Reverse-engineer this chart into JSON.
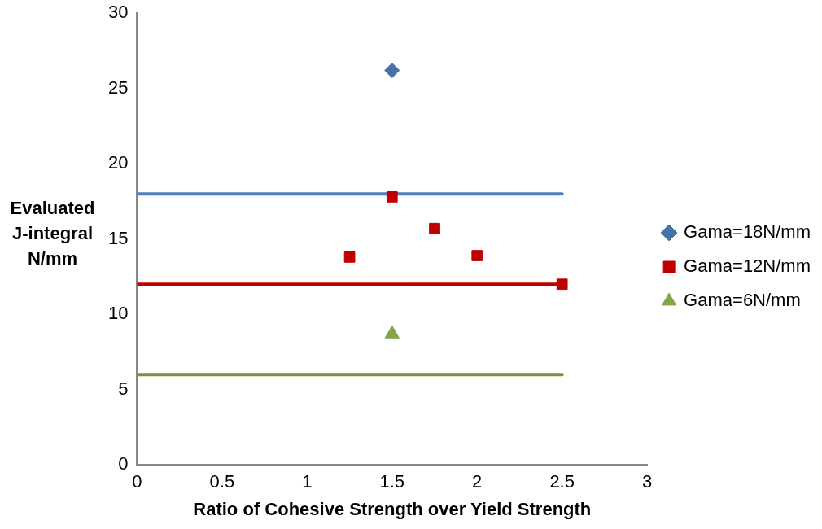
{
  "chart_data": {
    "type": "scatter",
    "xlabel": "Ratio of Cohesive Strength over Yield Strength",
    "ylabel": "Evaluated J-integral N/mm",
    "xlim": [
      0,
      3
    ],
    "xticks": [
      0,
      0.5,
      1,
      1.5,
      2,
      2.5,
      3
    ],
    "ylim": [
      0,
      30
    ],
    "yticks": [
      0,
      5,
      10,
      15,
      20,
      25,
      30
    ],
    "grid": false,
    "legend": "right",
    "series": [
      {
        "name": "Gama=18N/mm",
        "color": "#4572a7",
        "marker": "diamond",
        "x": [
          1.5
        ],
        "values": [
          26.2
        ]
      },
      {
        "name": "Gama=12N/mm",
        "color": "#c00000",
        "marker": "square",
        "x": [
          1.25,
          1.5,
          1.75,
          2,
          2.5
        ],
        "values": [
          13.8,
          17.8,
          15.7,
          13.9,
          12
        ]
      },
      {
        "name": "Gama=6N/mm",
        "color": "#86a44a",
        "marker": "triangle",
        "x": [
          1.5
        ],
        "values": [
          8.7
        ]
      },
      {
        "type": "line",
        "color": "#4f81bd",
        "marker": "none",
        "x": [
          0,
          2.5
        ],
        "values": [
          18,
          18
        ]
      },
      {
        "type": "line",
        "color": "#c00000",
        "marker": "none",
        "x": [
          0,
          2.5
        ],
        "values": [
          12,
          12
        ]
      },
      {
        "type": "line",
        "color": "#77933c",
        "marker": "none",
        "x": [
          0,
          2.5
        ],
        "values": [
          6,
          6
        ]
      }
    ]
  }
}
